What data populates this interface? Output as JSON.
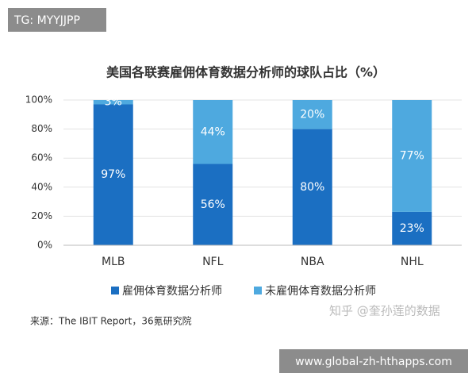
{
  "chart_data": {
    "type": "stacked_bar",
    "title": "美国各联赛雇佣体育数据分析师的球队占比（%）",
    "categories": [
      "MLB",
      "NFL",
      "NBA",
      "NHL"
    ],
    "series": [
      {
        "name": "雇佣体育数据分析师",
        "color": "#1b6fc2",
        "values": [
          97,
          56,
          80,
          23
        ],
        "value_labels": [
          "97%",
          "56%",
          "80%",
          "23%"
        ]
      },
      {
        "name": "未雇佣体育数据分析师",
        "color": "#4ea9df",
        "values": [
          3,
          44,
          20,
          77
        ],
        "value_labels": [
          "3%",
          "44%",
          "20%",
          "77%"
        ]
      }
    ],
    "ylim": [
      0,
      100
    ],
    "yticks": [
      {
        "value": 0,
        "label": "0%"
      },
      {
        "value": 20,
        "label": "20%"
      },
      {
        "value": 40,
        "label": "40%"
      },
      {
        "value": 60,
        "label": "60%"
      },
      {
        "value": 80,
        "label": "80%"
      },
      {
        "value": 100,
        "label": "100%"
      }
    ],
    "grid": true,
    "source": "来源：The IBIT Report，36氪研究院"
  },
  "overlay": {
    "tag": "TG: MYYJJPP",
    "watermark": "知乎 @奎孙莲的数据",
    "url": "www.global-zh-hthapps.com"
  }
}
